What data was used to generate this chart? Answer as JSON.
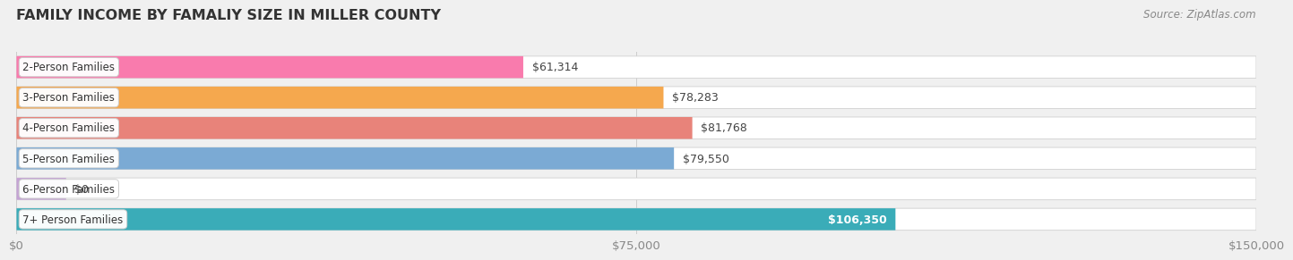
{
  "title": "FAMILY INCOME BY FAMALIY SIZE IN MILLER COUNTY",
  "source": "Source: ZipAtlas.com",
  "categories": [
    "2-Person Families",
    "3-Person Families",
    "4-Person Families",
    "5-Person Families",
    "6-Person Families",
    "7+ Person Families"
  ],
  "values": [
    61314,
    78283,
    81768,
    79550,
    0,
    106350
  ],
  "bar_colors": [
    "#F97BAD",
    "#F5A84E",
    "#E8837A",
    "#7BAAD4",
    "#C4A3D4",
    "#3AACB8"
  ],
  "value_labels": [
    "$61,314",
    "$78,283",
    "$81,768",
    "$79,550",
    "$0",
    "$106,350"
  ],
  "value_label_inside": [
    false,
    false,
    false,
    false,
    false,
    true
  ],
  "xlim": [
    0,
    150000
  ],
  "xticks": [
    0,
    75000,
    150000
  ],
  "xtick_labels": [
    "$0",
    "$75,000",
    "$150,000"
  ],
  "background_color": "#f0f0f0",
  "bar_bg_color": "#ffffff",
  "title_fontsize": 11.5,
  "tick_fontsize": 9.5,
  "label_fontsize": 8.5,
  "value_fontsize": 9,
  "source_fontsize": 8.5,
  "bar_height": 0.72,
  "bar_gap": 0.28
}
